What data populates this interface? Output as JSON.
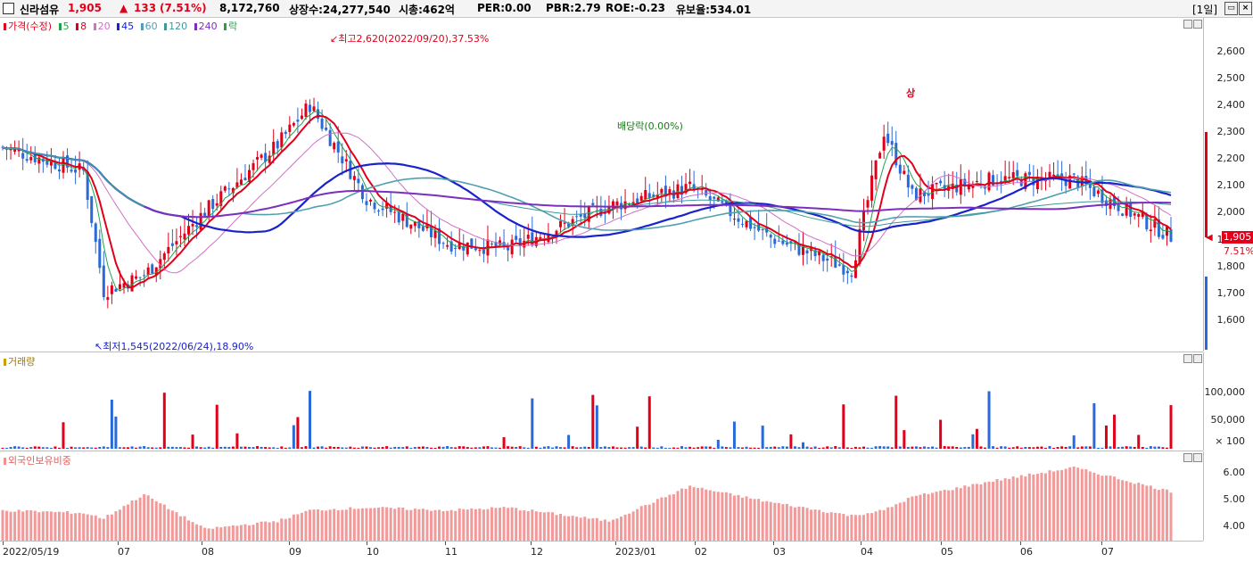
{
  "header": {
    "stock_name": "신라섬유",
    "price": "1,905",
    "change_arrow": "▲",
    "change": "133",
    "change_pct": "(7.51%)",
    "volume": "8,172,760",
    "listed_shares": "상장수:24,277,540",
    "market_cap": "시총:462억",
    "per": "PER:0.00",
    "pbr": "PBR:2.79",
    "roe": "ROE:-0.23",
    "float_ratio": "유보율:534.01",
    "period": "[1일]"
  },
  "legend": {
    "price_label": "가격(수정)",
    "ma": [
      "5",
      "8",
      "20",
      "45",
      "60",
      "120",
      "240"
    ],
    "ma_colors": [
      "#22a34a",
      "#e1001a",
      "#d070c8",
      "#1a22cc",
      "#50a0b0",
      "#3c9a9a",
      "#7b2fbe"
    ],
    "ex_label": "락"
  },
  "annotations": {
    "high": "최고2,620(2022/09/20),37.53%",
    "low": "최저1,545(2022/06/24),18.90%",
    "dividend": "배당락(0.00%)",
    "limit_up": "상"
  },
  "price_axis": {
    "ticks": [
      "2,600",
      "2,500",
      "2,400",
      "2,300",
      "2,200",
      "2,100",
      "2,000",
      "1,900",
      "1,800",
      "1,700",
      "1,600"
    ],
    "current_price": "1,905",
    "current_pct": "7.51%"
  },
  "volume_panel": {
    "title": "거래량",
    "ticks": [
      "100,000",
      "50,000",
      "× 100"
    ]
  },
  "foreign_panel": {
    "title": "외국인보유비중",
    "ticks": [
      "6.00",
      "5.00",
      "4.00"
    ]
  },
  "x_axis": {
    "labels": [
      "2022/05/19",
      "07",
      "08",
      "09",
      "10",
      "11",
      "12",
      "2023/01",
      "02",
      "03",
      "04",
      "05",
      "06",
      "07"
    ]
  },
  "chart_data": {
    "type": "candlestick",
    "x": [
      "2022/05/19",
      "2022/06",
      "2022/06/24",
      "2022/07",
      "2022/08",
      "2022/09",
      "2022/09/20",
      "2022/10",
      "2022/11",
      "2022/12",
      "2023/01",
      "2023/02",
      "2023/03",
      "2023/04",
      "2023/04 late",
      "2023/05",
      "2023/06",
      "2023/07",
      "2023/07 end"
    ],
    "close": [
      2240,
      2150,
      1700,
      1760,
      2000,
      2250,
      2400,
      2050,
      1880,
      1860,
      2020,
      2090,
      1900,
      1780,
      2300,
      2060,
      2120,
      2120,
      1905
    ],
    "ylim": [
      1500,
      2700
    ],
    "foreign_ratio_pct": [
      4.6,
      4.5,
      4.3,
      5.2,
      3.9,
      4.2,
      4.6,
      4.7,
      4.6,
      4.7,
      4.2,
      5.5,
      4.9,
      4.4,
      4.6,
      5.1,
      5.7,
      6.2,
      5.3
    ],
    "volume_axis": [
      0,
      120000
    ]
  }
}
